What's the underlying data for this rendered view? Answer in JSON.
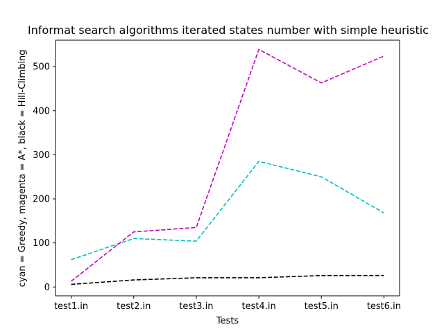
{
  "chart_data": {
    "type": "line",
    "title": "Informat search algorithms iterated states number with simple heuristic",
    "xlabel": "Tests",
    "ylabel": "cyan = Greedy, magenta = A*, black = Hill-Climbing",
    "categories": [
      "test1.in",
      "test2.in",
      "test3.in",
      "test4.in",
      "test5.in",
      "test6.in"
    ],
    "ylim": [
      -20,
      560
    ],
    "yticks": [
      0,
      100,
      200,
      300,
      400,
      500
    ],
    "grid": false,
    "series": [
      {
        "color": "#00bfbf",
        "style": "dashed",
        "values": [
          62,
          110,
          104,
          285,
          250,
          168
        ]
      },
      {
        "color": "#bf00bf",
        "style": "dashed",
        "values": [
          13,
          125,
          135,
          539,
          463,
          524
        ]
      },
      {
        "color": "#000000",
        "style": "dashed",
        "values": [
          6,
          16,
          21,
          21,
          26,
          26
        ]
      }
    ]
  }
}
